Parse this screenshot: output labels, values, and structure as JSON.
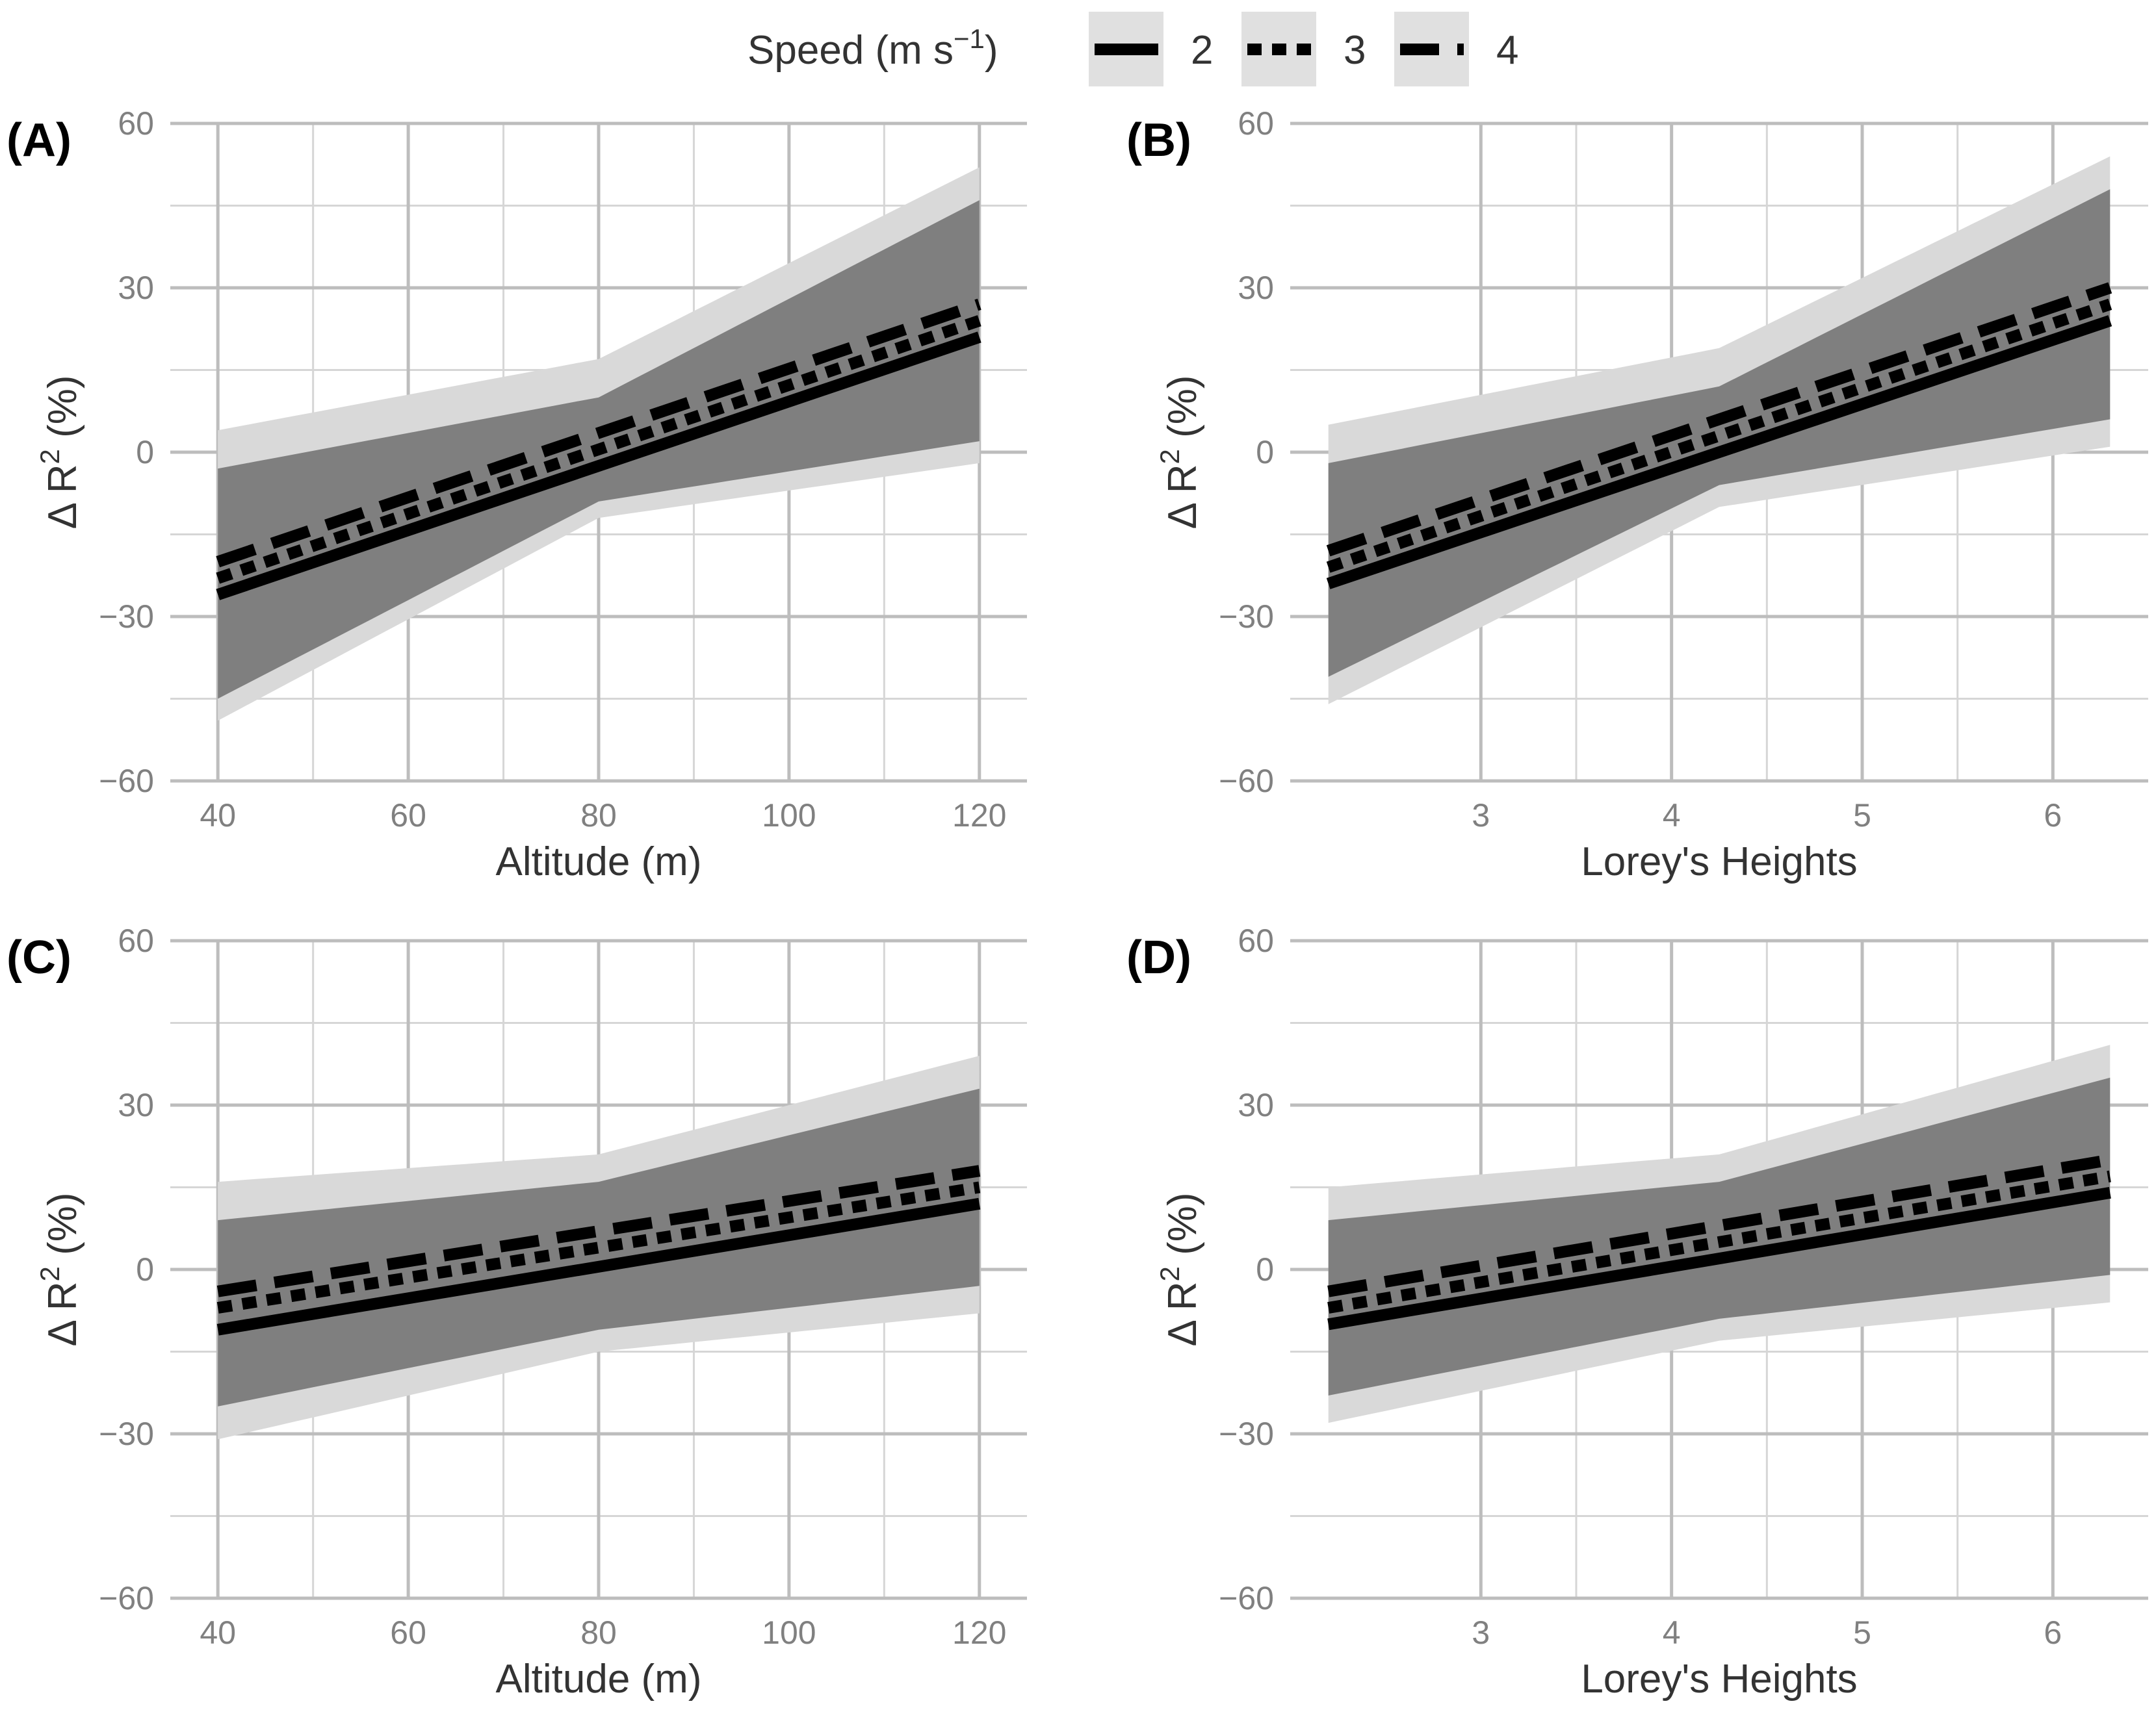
{
  "legend": {
    "title": "Speed (m s",
    "title_sup": "−1",
    "title_close": ")",
    "entries": [
      {
        "label": "2",
        "linetype": "solid"
      },
      {
        "label": "3",
        "linetype": "dotted"
      },
      {
        "label": "4",
        "linetype": "dashed"
      }
    ],
    "colors": {
      "line": "#000000",
      "band_outer": "#d9d9d9",
      "band_inner": "#7f7f7f",
      "key_bg": "#e0e0e0"
    }
  },
  "chart_data": [
    {
      "type": "line",
      "panel_label": "(A)",
      "xlabel": "Altitude (m)",
      "ylabel": "Δ R",
      "ylabel_sup": "2",
      "ylabel_suffix": " (%)",
      "xlim": [
        35,
        125
      ],
      "ylim": [
        -60,
        60
      ],
      "xticks": [
        40,
        60,
        80,
        100,
        120
      ],
      "xtick_labels": [
        "40",
        "60",
        "80",
        "100",
        "120"
      ],
      "yticks": [
        -60,
        -30,
        0,
        30,
        60
      ],
      "ytick_labels": [
        "−60",
        "−30",
        "0",
        "30",
        "60"
      ],
      "x_range": [
        40,
        120
      ],
      "series": [
        {
          "name": "2",
          "linetype": "solid",
          "x": [
            40,
            120
          ],
          "y": [
            -26,
            21
          ]
        },
        {
          "name": "3",
          "linetype": "dotted",
          "x": [
            40,
            120
          ],
          "y": [
            -23,
            24
          ]
        },
        {
          "name": "4",
          "linetype": "dashed",
          "x": [
            40,
            120
          ],
          "y": [
            -20,
            27
          ]
        }
      ],
      "bands": [
        {
          "level": "outer",
          "x": [
            40,
            80,
            120
          ],
          "lower": [
            -49,
            -12,
            -2
          ],
          "upper": [
            4,
            17,
            52
          ]
        },
        {
          "level": "inner",
          "x": [
            40,
            80,
            120
          ],
          "lower": [
            -45,
            -9,
            2
          ],
          "upper": [
            -3,
            10,
            46
          ]
        }
      ]
    },
    {
      "type": "line",
      "panel_label": "(B)",
      "xlabel": "Lorey's Heights",
      "ylabel": "Δ R",
      "ylabel_sup": "2",
      "ylabel_suffix": " (%)",
      "xlim": [
        2,
        6.5
      ],
      "ylim": [
        -60,
        60
      ],
      "xticks": [
        3,
        4,
        5,
        6
      ],
      "xtick_labels": [
        "3",
        "4",
        "5",
        "6"
      ],
      "yticks": [
        -60,
        -30,
        0,
        30,
        60
      ],
      "ytick_labels": [
        "−60",
        "−30",
        "0",
        "30",
        "60"
      ],
      "x_range": [
        2.2,
        6.3
      ],
      "series": [
        {
          "name": "2",
          "linetype": "solid",
          "x": [
            2.2,
            6.3
          ],
          "y": [
            -24,
            24
          ]
        },
        {
          "name": "3",
          "linetype": "dotted",
          "x": [
            2.2,
            6.3
          ],
          "y": [
            -21,
            27
          ]
        },
        {
          "name": "4",
          "linetype": "dashed",
          "x": [
            2.2,
            6.3
          ],
          "y": [
            -18,
            30
          ]
        }
      ],
      "bands": [
        {
          "level": "outer",
          "x": [
            2.2,
            4.25,
            6.3
          ],
          "lower": [
            -46,
            -10,
            1
          ],
          "upper": [
            5,
            19,
            54
          ]
        },
        {
          "level": "inner",
          "x": [
            2.2,
            4.25,
            6.3
          ],
          "lower": [
            -41,
            -6,
            6
          ],
          "upper": [
            -2,
            12,
            48
          ]
        }
      ]
    },
    {
      "type": "line",
      "panel_label": "(C)",
      "xlabel": "Altitude (m)",
      "ylabel": "Δ R",
      "ylabel_sup": "2",
      "ylabel_suffix": " (%)",
      "xlim": [
        35,
        125
      ],
      "ylim": [
        -60,
        60
      ],
      "xticks": [
        40,
        60,
        80,
        100,
        120
      ],
      "xtick_labels": [
        "40",
        "60",
        "80",
        "100",
        "120"
      ],
      "yticks": [
        -60,
        -30,
        0,
        30,
        60
      ],
      "ytick_labels": [
        "−60",
        "−30",
        "0",
        "30",
        "60"
      ],
      "x_range": [
        40,
        120
      ],
      "series": [
        {
          "name": "2",
          "linetype": "solid",
          "x": [
            40,
            120
          ],
          "y": [
            -11,
            12
          ]
        },
        {
          "name": "3",
          "linetype": "dotted",
          "x": [
            40,
            120
          ],
          "y": [
            -7,
            15
          ]
        },
        {
          "name": "4",
          "linetype": "dashed",
          "x": [
            40,
            120
          ],
          "y": [
            -4,
            18
          ]
        }
      ],
      "bands": [
        {
          "level": "outer",
          "x": [
            40,
            80,
            120
          ],
          "lower": [
            -31,
            -15,
            -8
          ],
          "upper": [
            16,
            21,
            39
          ]
        },
        {
          "level": "inner",
          "x": [
            40,
            80,
            120
          ],
          "lower": [
            -25,
            -11,
            -3
          ],
          "upper": [
            9,
            16,
            33
          ]
        }
      ]
    },
    {
      "type": "line",
      "panel_label": "(D)",
      "xlabel": "Lorey's Heights",
      "ylabel": "Δ R",
      "ylabel_sup": "2",
      "ylabel_suffix": " (%)",
      "xlim": [
        2,
        6.5
      ],
      "ylim": [
        -60,
        60
      ],
      "xticks": [
        3,
        4,
        5,
        6
      ],
      "xtick_labels": [
        "3",
        "4",
        "5",
        "6"
      ],
      "yticks": [
        -60,
        -30,
        0,
        30,
        60
      ],
      "ytick_labels": [
        "−60",
        "−30",
        "0",
        "30",
        "60"
      ],
      "x_range": [
        2.2,
        6.3
      ],
      "series": [
        {
          "name": "2",
          "linetype": "solid",
          "x": [
            2.2,
            6.3
          ],
          "y": [
            -10,
            14
          ]
        },
        {
          "name": "3",
          "linetype": "dotted",
          "x": [
            2.2,
            6.3
          ],
          "y": [
            -7,
            17
          ]
        },
        {
          "name": "4",
          "linetype": "dashed",
          "x": [
            2.2,
            6.3
          ],
          "y": [
            -4,
            20
          ]
        }
      ],
      "bands": [
        {
          "level": "outer",
          "x": [
            2.2,
            4.25,
            6.3
          ],
          "lower": [
            -28,
            -13,
            -6
          ],
          "upper": [
            15,
            21,
            41
          ]
        },
        {
          "level": "inner",
          "x": [
            2.2,
            4.25,
            6.3
          ],
          "lower": [
            -23,
            -9,
            -1
          ],
          "upper": [
            9,
            16,
            35
          ]
        }
      ]
    }
  ]
}
